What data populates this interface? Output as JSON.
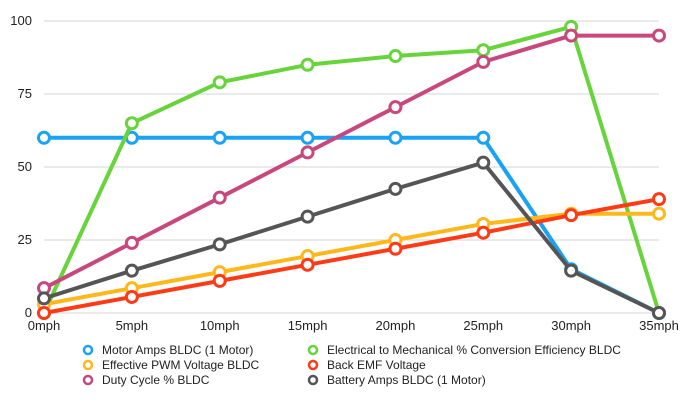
{
  "chart_data": {
    "type": "line",
    "title": "",
    "xlabel": "",
    "ylabel": "",
    "categories": [
      "0mph",
      "5mph",
      "10mph",
      "15mph",
      "20mph",
      "25mph",
      "30mph",
      "35mph"
    ],
    "ylim": [
      0,
      100
    ],
    "yticks": [
      0,
      25,
      50,
      75,
      100
    ],
    "grid": true,
    "legend_position": "bottom",
    "series": [
      {
        "name": "Motor Amps BLDC (1 Motor)",
        "color": "#1aa3f5",
        "values": [
          60,
          60,
          60,
          60,
          60,
          60,
          15,
          0
        ]
      },
      {
        "name": "Electrical to Mechanical % Conversion Efficiency BLDC",
        "color": "#66d43a",
        "values": [
          0,
          65,
          79,
          85,
          88,
          90,
          98,
          0
        ]
      },
      {
        "name": "Effective PWM Voltage BLDC",
        "color": "#ffb81c",
        "values": [
          3,
          8.5,
          14,
          19.5,
          25,
          30.5,
          34,
          34
        ]
      },
      {
        "name": "Back EMF Voltage",
        "color": "#ff3b17",
        "values": [
          0,
          5.5,
          11,
          16.5,
          22,
          27.5,
          33.5,
          39
        ]
      },
      {
        "name": "Duty Cycle % BLDC",
        "color": "#c8487e",
        "values": [
          8.5,
          24,
          39.5,
          55,
          70.5,
          86,
          95,
          95
        ]
      },
      {
        "name": "Battery Amps BLDC (1 Motor)",
        "color": "#555555",
        "values": [
          5,
          14.5,
          23.5,
          33,
          42.5,
          51.5,
          14.5,
          0
        ]
      }
    ]
  }
}
